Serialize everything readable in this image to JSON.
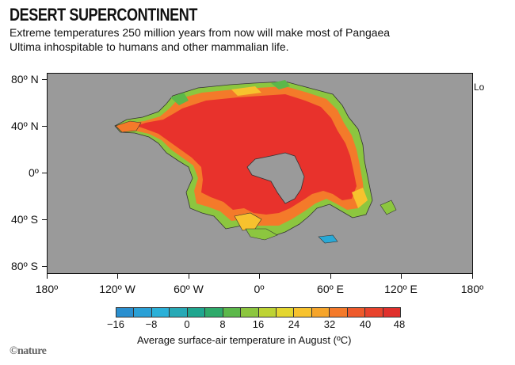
{
  "title": "DESERT SUPERCONTINENT",
  "subtitle": "Extreme temperatures 250 million years from now will make most of Pangaea Ultima inhospitable to humans and other mammalian life.",
  "map": {
    "lat_labels": [
      "80º N",
      "40º N",
      "0º",
      "40º S",
      "80º S"
    ],
    "lon_labels": [
      "180º",
      "120º W",
      "60º W",
      "0º",
      "60º E",
      "120º E",
      "180º"
    ],
    "side_label": "Lo",
    "ocean_color": "#9a9a9a",
    "land_colors": {
      "hot": "#e8322c",
      "warm": "#f47a2a",
      "mild": "#f7c22e",
      "cool": "#8cc63f",
      "cold": "#2ca58d",
      "ice": "#29a9d6"
    }
  },
  "colorbar": {
    "ticks": [
      "−16",
      "−8",
      "0",
      "8",
      "16",
      "24",
      "32",
      "40",
      "48"
    ],
    "colors": [
      "#2a8fcf",
      "#2aa0d6",
      "#2ab0d8",
      "#27a9b6",
      "#1fa68f",
      "#2eaa6a",
      "#5cb84a",
      "#8cc63f",
      "#bdd334",
      "#e4d62f",
      "#f7c22e",
      "#f6a52b",
      "#f47a2a",
      "#ee5a2b",
      "#e8432c",
      "#e0302c"
    ],
    "caption": "Average surface-air temperature in August (ºC)"
  },
  "credit": "©nature"
}
